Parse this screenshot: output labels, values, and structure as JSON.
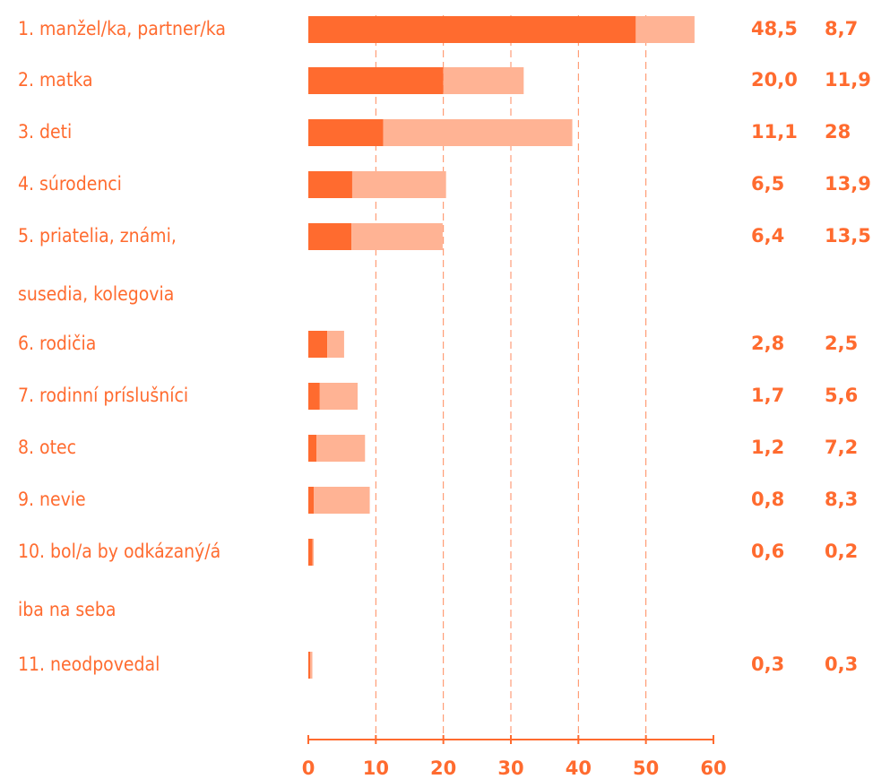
{
  "chart_data": {
    "type": "stacked-barh",
    "categories": [
      [
        "1. manžel/ka, partner/ka"
      ],
      [
        "2. matka"
      ],
      [
        "3. deti"
      ],
      [
        "4. súrodenci"
      ],
      [
        "5. priatelia, známi,",
        "susedia, kolegovia"
      ],
      [
        "6. rodičia"
      ],
      [
        "7. rodinní príslušníci"
      ],
      [
        "8. otec"
      ],
      [
        "9. nevie"
      ],
      [
        "10. bol/a by odkázaný/á",
        "iba na seba"
      ],
      [
        "11. neodpovedal"
      ]
    ],
    "series": [
      {
        "color": "#ff6b2f",
        "values": [
          48.5,
          20.0,
          11.1,
          6.5,
          6.4,
          2.8,
          1.7,
          1.2,
          0.8,
          0.6,
          0.3
        ],
        "value_labels": [
          "48,5",
          "20,0",
          "11,1",
          "6,5",
          "6,4",
          "2,8",
          "1,7",
          "1,2",
          "0,8",
          "0,6",
          "0,3"
        ]
      },
      {
        "color": "#ffb394",
        "values": [
          8.7,
          11.9,
          28,
          13.9,
          13.5,
          2.5,
          5.6,
          7.2,
          8.3,
          0.2,
          0.3
        ],
        "value_labels": [
          "8,7",
          "11,9",
          "28",
          "13,9",
          "13,5",
          "2,5",
          "5,6",
          "7,2",
          "8,3",
          "0,2",
          "0,3"
        ]
      }
    ],
    "xlim": [
      0,
      60
    ],
    "xticks": [
      0,
      10,
      20,
      30,
      40,
      50,
      60
    ],
    "grid": true
  }
}
